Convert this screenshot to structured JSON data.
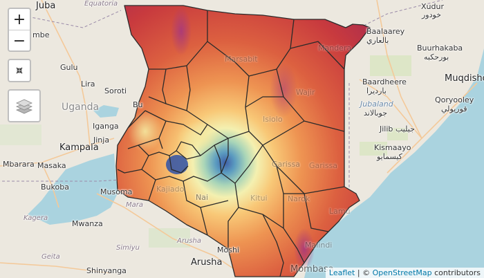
{
  "controls": {
    "zoom_in": "+",
    "zoom_out": "−",
    "reset_icon": "reset-view-icon",
    "layers_icon": "layers-icon"
  },
  "attribution": {
    "leaflet": "Leaflet",
    "separator": " | © ",
    "osm": "OpenStreetMap",
    "contributors": " contributors"
  },
  "labels": {
    "juba": "Juba",
    "equatoria": "Equatoria",
    "mbe": "mbe",
    "gulu": "Gulu",
    "lira": "Lira",
    "uganda": "Uganda",
    "soroti": "Soroti",
    "bu": "Bu",
    "iganga": "Iganga",
    "kampala": "Kampala",
    "jinja": "Jinja",
    "mbarara": "Mbarara",
    "masaka": "Masaka",
    "bukoba": "Bukoba",
    "musoma": "Musoma",
    "mara": "Mara",
    "kagera": "Kagera",
    "mwanza": "Mwanza",
    "simiyu": "Simiyu",
    "geita": "Geita",
    "shinyanga": "Shinyanga",
    "arusha_region": "Arusha",
    "arusha": "Arusha",
    "moshi": "Moshi",
    "nairobi_ghost": "Nai",
    "xudur": "Xudur",
    "xudur_ar": "خودور",
    "baalaarey": "Baalaarey",
    "baalaarey_ar": "بالعاري",
    "buurhakaba": "Buurhakaba",
    "buurhakaba_ar": "بورحكبه",
    "muqdisho": "Muqdisho",
    "baardheere": "Baardheere",
    "baardheere_ar": "باردیرا",
    "jubaland": "Jubaland",
    "jubaland_ar": "جوبالاند",
    "qoryooley": "Qoryooley",
    "qoryooley_ar": "قوريولي",
    "jilib": "Jilib",
    "jilib_ar": "جيليب",
    "kismaayo": "Kismaayo",
    "kismaayo_ar": "كيسمايو",
    "mandera": "Mandera",
    "marsabit": "Marsabit",
    "wajir": "Wajir",
    "isiolo": "Isiolo",
    "garissa": "Garissa",
    "garissa2": "Garissa",
    "kitui": "Kitui",
    "kajiado": "Kajiado",
    "narok": "Narok",
    "lamu": "Lamu",
    "mombasa": "Mombasa",
    "malindi": "Malindi"
  }
}
